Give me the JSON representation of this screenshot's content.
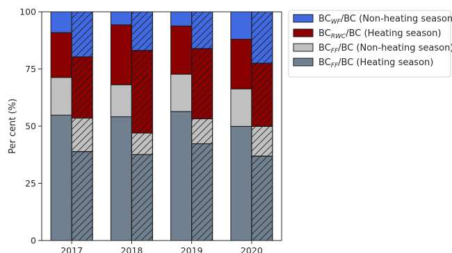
{
  "chart_data": {
    "type": "bar",
    "stacked": true,
    "categories": [
      "2017",
      "2018",
      "2019",
      "2020"
    ],
    "groups": [
      "Heating season",
      "Non-heating season"
    ],
    "ylabel": "Per cent (%)",
    "xlabel": "",
    "ylim": [
      0,
      100
    ],
    "yticks": [
      "0",
      "25",
      "50",
      "75",
      "100"
    ],
    "grid": false,
    "legend_position": "outside top-right",
    "series": [
      {
        "key": "ff_heating",
        "color": "#708090",
        "values": {
          "Heating season": [
            38.9,
            37.6,
            42.3,
            36.9
          ],
          "Non-heating season": [
            null,
            null,
            null,
            null
          ]
        }
      },
      {
        "key": "ff_nonheating",
        "color": "#c0c0c0",
        "values": {
          "Heating season": [
            null,
            null,
            null,
            null
          ],
          "Non-heating season": [
            54.8,
            54.1,
            56.4,
            49.9
          ]
        }
      },
      {
        "key": "ff_both_top",
        "color": "#c0c0c0",
        "values": {
          "Heating season": [
            14.6,
            9.4,
            10.9,
            13.0
          ],
          "Non-heating season": [
            16.5,
            14.0,
            16.3,
            16.4
          ]
        }
      },
      {
        "key": "rwc",
        "color": "#8b0000",
        "values": {
          "Heating season": [
            26.8,
            36.1,
            30.7,
            27.6
          ],
          "Non-heating season": [
            19.6,
            26.2,
            21.1,
            21.7
          ]
        }
      },
      {
        "key": "wf",
        "color": "#4169e1",
        "values": {
          "Heating season": [
            19.7,
            16.9,
            16.1,
            22.5
          ],
          "Non-heating season": [
            9.1,
            5.7,
            6.2,
            12.0
          ]
        }
      }
    ],
    "stacks": {
      "Non-heating season": [
        [
          {
            "c": "#708090",
            "v": [
              54.8,
              54.1,
              56.4,
              49.9
            ]
          },
          {
            "c": "#c0c0c0",
            "v": [
              16.5,
              14.0,
              16.3,
              16.4
            ]
          },
          {
            "c": "#8b0000",
            "v": [
              19.6,
              26.2,
              21.1,
              21.7
            ]
          },
          {
            "c": "#4169e1",
            "v": [
              9.1,
              5.7,
              6.2,
              12.0
            ]
          }
        ]
      ],
      "Heating season": [
        [
          {
            "c": "#708090",
            "v": [
              38.9,
              37.6,
              42.3,
              36.9
            ]
          },
          {
            "c": "#c0c0c0",
            "v": [
              14.6,
              9.4,
              10.9,
              13.0
            ]
          },
          {
            "c": "#8b0000",
            "v": [
              26.8,
              36.1,
              30.7,
              27.6
            ]
          },
          {
            "c": "#4169e1",
            "v": [
              19.7,
              16.9,
              16.1,
              22.5
            ]
          }
        ]
      ]
    },
    "legend": [
      {
        "base": "BC",
        "sub": "WF",
        "rest": "/BC (Non-heating season)",
        "color": "#4169e1",
        "hatch": false
      },
      {
        "base": "BC",
        "sub": "RWC",
        "rest": "/BC (Heating season)",
        "color": "#8b0000",
        "hatch": false
      },
      {
        "base": "BC",
        "sub": "FF",
        "rest": "/BC (Non-heating season)",
        "color": "#c0c0c0",
        "hatch": false
      },
      {
        "base": "BC",
        "sub": "FF",
        "rest": "/BC (Heating season)",
        "color": "#708090",
        "hatch": false
      }
    ]
  }
}
